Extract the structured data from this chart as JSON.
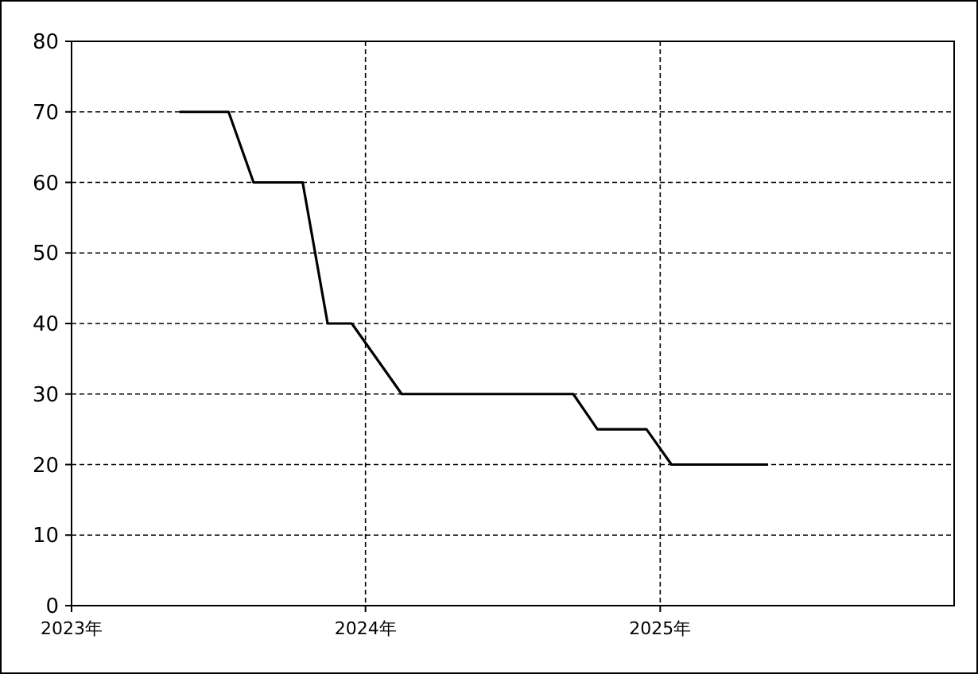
{
  "chart_data": {
    "type": "line",
    "x": [
      "2023-05-15",
      "2023-07-15",
      "2023-08-15",
      "2023-10-15",
      "2023-11-15",
      "2023-12-15",
      "2024-02-15",
      "2024-09-15",
      "2024-10-15",
      "2024-12-15",
      "2025-01-15",
      "2025-05-15"
    ],
    "series": [
      {
        "color": "#000000",
        "values": [
          70,
          70,
          60,
          60,
          40,
          40,
          30,
          30,
          25,
          25,
          20,
          20
        ]
      }
    ],
    "xlim": [
      "2023-01-01",
      "2026-01-01"
    ],
    "xticks": [
      {
        "value": "2023-01-01",
        "label": "2023年"
      },
      {
        "value": "2024-01-01",
        "label": "2024年"
      },
      {
        "value": "2025-01-01",
        "label": "2025年"
      }
    ],
    "ylim": [
      0,
      80
    ],
    "yticks": [
      0,
      10,
      20,
      30,
      40,
      50,
      60,
      70,
      80
    ],
    "grid": true
  }
}
